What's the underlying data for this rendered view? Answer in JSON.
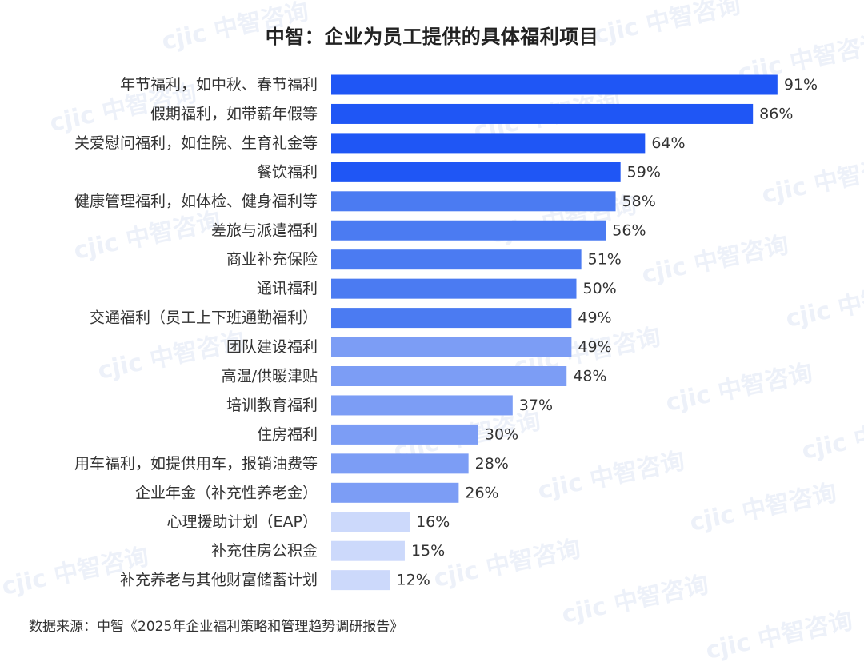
{
  "chart_data": {
    "type": "bar",
    "orientation": "horizontal",
    "title": "中智：企业为员工提供的具体福利项目",
    "categories": [
      "年节福利，如中秋、春节福利",
      "假期福利，如带薪年假等",
      "关爱慰问福利，如住院、生育礼金等",
      "餐饮福利",
      "健康管理福利，如体检、健身福利等",
      "差旅与派遣福利",
      "商业补充保险",
      "通讯福利",
      "交通福利（员工上下班通勤福利）",
      "团队建设福利",
      "高温/供暖津贴",
      "培训教育福利",
      "住房福利",
      "用车福利，如提供用车，报销油费等",
      "企业年金（补充性养老金）",
      "心理援助计划（EAP）",
      "补充住房公积金",
      "补充养老与其他财富储蓄计划"
    ],
    "values": [
      91,
      86,
      64,
      59,
      58,
      56,
      51,
      50,
      49,
      49,
      48,
      37,
      30,
      28,
      26,
      16,
      15,
      12
    ],
    "value_labels": [
      "91%",
      "86%",
      "64%",
      "59%",
      "58%",
      "56%",
      "51%",
      "50%",
      "49%",
      "49%",
      "48%",
      "37%",
      "30%",
      "28%",
      "26%",
      "16%",
      "15%",
      "12%"
    ],
    "xlim": [
      0,
      100
    ],
    "grid": false,
    "legend": "none",
    "colors": {
      "tier_dark": "#1f56f5",
      "tier_medium": "#4b7bf2",
      "tier_light": "#7c9df5",
      "tier_pale": "#ccd9fb"
    },
    "color_tiers": [
      "tier_dark",
      "tier_dark",
      "tier_dark",
      "tier_dark",
      "tier_medium",
      "tier_medium",
      "tier_medium",
      "tier_medium",
      "tier_medium",
      "tier_light",
      "tier_light",
      "tier_light",
      "tier_light",
      "tier_light",
      "tier_light",
      "tier_pale",
      "tier_pale",
      "tier_pale"
    ]
  },
  "source_note": "数据来源：中智《2025年企业福利策略和管理趋势调研报告》",
  "watermark": "cjic 中智咨询"
}
